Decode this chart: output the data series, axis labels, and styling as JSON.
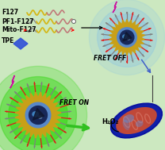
{
  "bg_color": "#cce8c0",
  "labels": {
    "f127": "F127",
    "pf1f127": "PF1-F127",
    "mitof127": "Mito-F127",
    "tpe": "TPE",
    "fret_off": "FRET OFF",
    "fret_on": "FRET ON",
    "h2o2": "H₂O₂"
  },
  "colors": {
    "yellow_wave": "#d4b818",
    "pink_wave": "#c07878",
    "gray_wave": "#909090",
    "blue_arrow": "#4060c8",
    "green_arrow": "#30c020",
    "magenta_lightning": "#cc10a0",
    "nanoparticle_gold": "#c8a018",
    "nanoparticle_blue": "#3070c0",
    "nanoparticle_dark": "#182858",
    "nanoparticle_glow_off": "#90c8e0",
    "nanoparticle_glow_on": "#40d820",
    "red_spike": "#e01818",
    "gray_spike": "#808080",
    "tpe_blue": "#3050d8",
    "mito_outer": "#1828a0",
    "mito_inner_red": "#b84030",
    "mito_fold": "#d06050",
    "mito_blue_hl": "#4878d0"
  }
}
